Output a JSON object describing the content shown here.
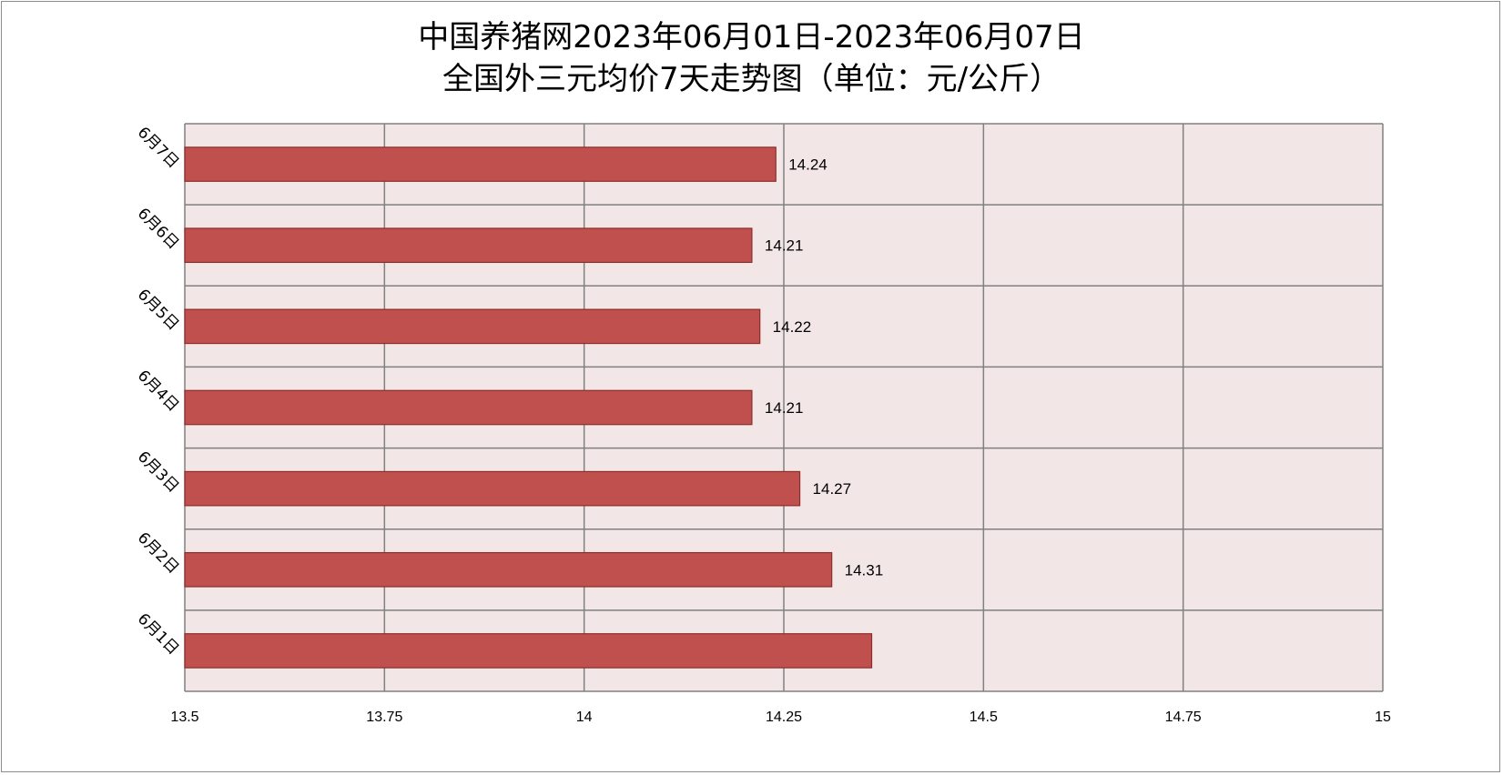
{
  "chart_data": {
    "type": "bar",
    "orientation": "horizontal",
    "title_line1": "中国养猪网2023年06月01日-2023年06月07日",
    "title_line2": "全国外三元均价7天走势图（单位：元/公斤）",
    "categories": [
      "6月1日",
      "6月2日",
      "6月3日",
      "6月4日",
      "6月5日",
      "6月6日",
      "6月7日"
    ],
    "values": [
      14.36,
      14.31,
      14.27,
      14.21,
      14.22,
      14.21,
      14.24
    ],
    "data_labels": [
      "",
      "14.31",
      "14.27",
      "14.21",
      "14.22",
      "14.21",
      "14.24"
    ],
    "xlim": [
      13.5,
      15
    ],
    "x_ticks": [
      "13.5",
      "13.75",
      "14",
      "14.25",
      "14.5",
      "14.75",
      "15"
    ],
    "grid": true,
    "colors": {
      "bar_fill": "#c0504d",
      "bar_stroke": "#8b2e2b",
      "plot_bg": "#f2e6e6",
      "grid": "#808080"
    }
  }
}
